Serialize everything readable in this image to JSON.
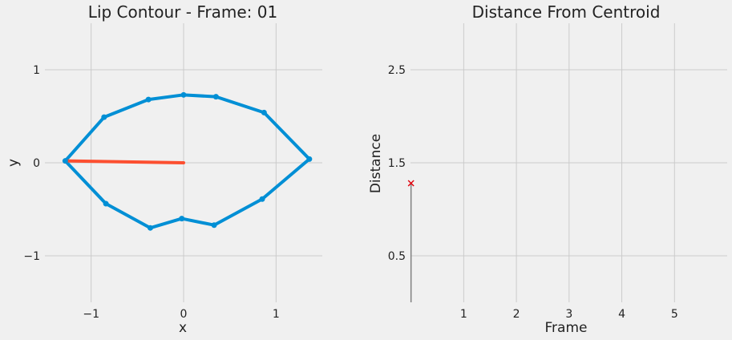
{
  "colors": {
    "background": "#f0f0f0",
    "grid": "#cbcbcb",
    "contour": "#008fd5",
    "radius": "#fc4f30",
    "stem": "#808080",
    "marker": "#e0000a"
  },
  "chart_data": [
    {
      "type": "line",
      "title": "Lip Contour - Frame: 01",
      "xlabel": "x",
      "ylabel": "y",
      "xlim": [
        -1.5,
        1.5
      ],
      "ylim": [
        -1.5,
        1.5
      ],
      "xticks": [
        {
          "v": -1,
          "label": "−1"
        },
        {
          "v": 0,
          "label": "0"
        },
        {
          "v": 1,
          "label": "1"
        }
      ],
      "yticks": [
        {
          "v": 1,
          "label": "1"
        },
        {
          "v": 0,
          "label": "0"
        },
        {
          "v": -1,
          "label": "−1"
        }
      ],
      "grid": true,
      "series": [
        {
          "kind": "contour",
          "points": [
            [
              -1.28,
              0.02
            ],
            [
              -0.86,
              0.49
            ],
            [
              -0.38,
              0.68
            ],
            [
              0.0,
              0.73
            ],
            [
              0.35,
              0.71
            ],
            [
              0.87,
              0.54
            ],
            [
              1.36,
              0.04
            ],
            [
              0.85,
              -0.39
            ],
            [
              0.33,
              -0.67
            ],
            [
              -0.02,
              -0.6
            ],
            [
              -0.36,
              -0.7
            ],
            [
              -0.84,
              -0.44
            ],
            [
              -1.28,
              0.02
            ]
          ]
        },
        {
          "kind": "radius",
          "points": [
            [
              0.0,
              0.0
            ],
            [
              -1.28,
              0.02
            ]
          ]
        }
      ]
    },
    {
      "type": "scatter",
      "title": "Distance From Centroid",
      "xlabel": "Frame",
      "ylabel": "Distance",
      "xlim": [
        -0.01,
        6.0
      ],
      "ylim": [
        0.0,
        3.0
      ],
      "xticks": [
        {
          "v": 1,
          "label": "1"
        },
        {
          "v": 2,
          "label": "2"
        },
        {
          "v": 3,
          "label": "3"
        },
        {
          "v": 4,
          "label": "4"
        },
        {
          "v": 5,
          "label": "5"
        }
      ],
      "yticks": [
        {
          "v": 2.5,
          "label": "2.5"
        },
        {
          "v": 1.5,
          "label": "1.5"
        },
        {
          "v": 0.5,
          "label": "0.5"
        }
      ],
      "grid": true,
      "points": [
        {
          "x": 0,
          "y": 1.28
        }
      ]
    }
  ]
}
